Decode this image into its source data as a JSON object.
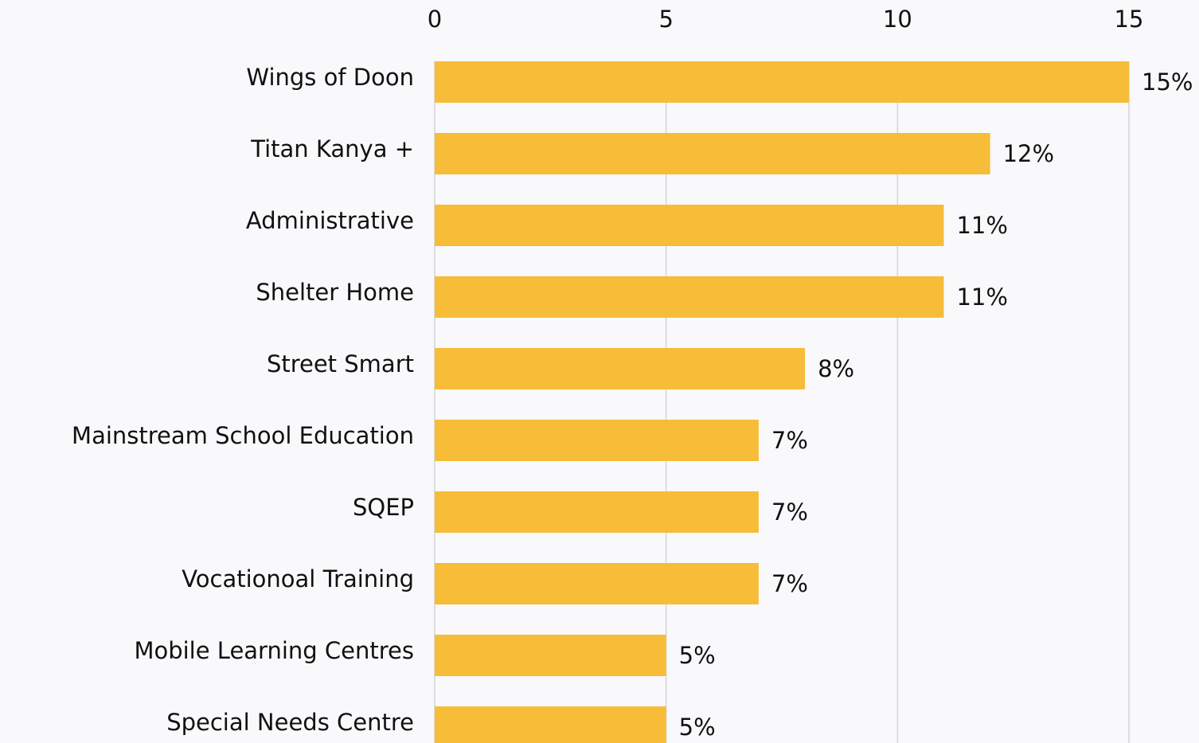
{
  "chart_data": {
    "type": "bar",
    "orientation": "horizontal",
    "categories": [
      "Wings of Doon",
      "Titan Kanya +",
      "Administrative",
      "Shelter Home",
      "Street Smart",
      "Mainstream School Education",
      "SQEP",
      "Vocationoal Training",
      "Mobile Learning Centres",
      "Special Needs Centre"
    ],
    "values": [
      15,
      12,
      11,
      11,
      8,
      7,
      7,
      7,
      5,
      5
    ],
    "value_labels": [
      "15%",
      "12%",
      "11%",
      "11%",
      "8%",
      "7%",
      "7%",
      "7%",
      "5%",
      "5%"
    ],
    "color": "#f7bc38",
    "xlim": [
      0,
      15
    ],
    "xticks": [
      0,
      5,
      10,
      15
    ],
    "grid": true
  }
}
